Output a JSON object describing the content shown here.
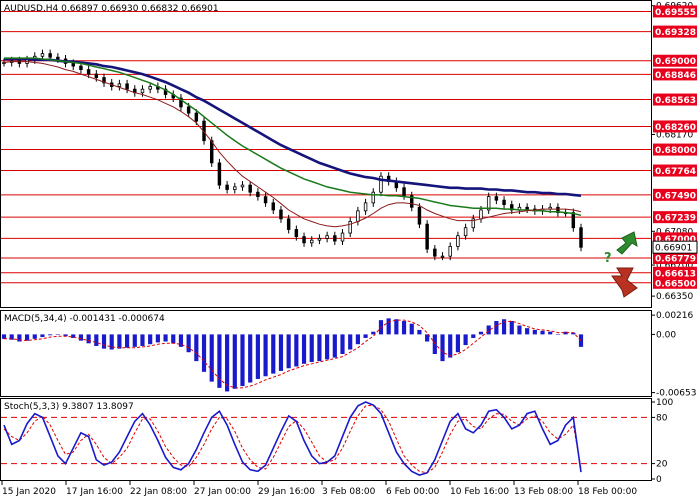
{
  "chart_data": [
    {
      "type": "line",
      "panel": "price",
      "title": "AUDUSD,H4  0.66897  0.66930  0.66832  0.66901",
      "ylim": [
        0.6625,
        0.6965
      ],
      "y_ticks": [
        "0.69620",
        "0.69555",
        "0.69328",
        "0.69000",
        "0.68846",
        "0.68563",
        "0.68260",
        "0.68170",
        "0.68000",
        "0.67764",
        "0.67490",
        "0.67239",
        "0.67080",
        "0.67000",
        "0.66901",
        "0.66779",
        "0.66700",
        "0.66613",
        "0.66500",
        "0.66350"
      ],
      "resistance_support_levels": [
        "0.69555",
        "0.69328",
        "0.69000",
        "0.68846",
        "0.68563",
        "0.68260",
        "0.68000",
        "0.67764",
        "0.67490",
        "0.67239",
        "0.67000",
        "0.66779",
        "0.66613",
        "0.66500"
      ],
      "current_price": "0.66901",
      "price": [
        0.6898,
        0.69,
        0.6897,
        0.6901,
        0.6905,
        0.6908,
        0.6904,
        0.6902,
        0.6897,
        0.6894,
        0.689,
        0.6885,
        0.6881,
        0.6875,
        0.6871,
        0.6874,
        0.6868,
        0.6864,
        0.6868,
        0.6871,
        0.6868,
        0.6862,
        0.6858,
        0.6848,
        0.6841,
        0.6832,
        0.681,
        0.6785,
        0.676,
        0.6755,
        0.6758,
        0.676,
        0.6752,
        0.6747,
        0.674,
        0.6732,
        0.6722,
        0.671,
        0.6702,
        0.6695,
        0.6698,
        0.67,
        0.6703,
        0.6697,
        0.6706,
        0.6719,
        0.6731,
        0.674,
        0.6752,
        0.677,
        0.6764,
        0.6757,
        0.6748,
        0.6735,
        0.6716,
        0.6688,
        0.668,
        0.668,
        0.6691,
        0.6703,
        0.6712,
        0.6722,
        0.6732,
        0.6747,
        0.6743,
        0.6738,
        0.6732,
        0.6735,
        0.6733,
        0.6731,
        0.6733,
        0.6735,
        0.6729,
        0.6729,
        0.6712,
        0.669
      ],
      "sma_fast_red": [
        0.6898,
        0.6899,
        0.6899,
        0.6899,
        0.6898,
        0.6897,
        0.6895,
        0.6893,
        0.689,
        0.6888,
        0.6885,
        0.6882,
        0.6879,
        0.6876,
        0.6873,
        0.687,
        0.6867,
        0.6864,
        0.6862,
        0.6859,
        0.6856,
        0.6852,
        0.6848,
        0.6843,
        0.6837,
        0.683,
        0.682,
        0.6809,
        0.6797,
        0.6787,
        0.6778,
        0.677,
        0.6764,
        0.6758,
        0.6752,
        0.6746,
        0.6739,
        0.6732,
        0.6727,
        0.6722,
        0.6719,
        0.6716,
        0.6714,
        0.6713,
        0.6714,
        0.6716,
        0.6719,
        0.6723,
        0.6728,
        0.6734,
        0.6738,
        0.674,
        0.674,
        0.6739,
        0.6737,
        0.6732,
        0.6728,
        0.6725,
        0.6722,
        0.672,
        0.672,
        0.672,
        0.6722,
        0.6724,
        0.6726,
        0.6728,
        0.6729,
        0.673,
        0.6731,
        0.6732,
        0.6733,
        0.6733,
        0.6733,
        0.6733,
        0.6732,
        0.673
      ],
      "sma_mid_green": [
        0.6903,
        0.6903,
        0.6903,
        0.6903,
        0.6903,
        0.6902,
        0.6901,
        0.69,
        0.6899,
        0.6898,
        0.6897,
        0.6895,
        0.6893,
        0.6891,
        0.6889,
        0.6887,
        0.6884,
        0.6881,
        0.6878,
        0.6875,
        0.6871,
        0.6867,
        0.6862,
        0.6856,
        0.685,
        0.6844,
        0.6837,
        0.683,
        0.6823,
        0.6816,
        0.681,
        0.6804,
        0.6799,
        0.6794,
        0.6789,
        0.6784,
        0.6779,
        0.6775,
        0.6771,
        0.6767,
        0.6764,
        0.6761,
        0.6758,
        0.6756,
        0.6754,
        0.6752,
        0.6751,
        0.675,
        0.6749,
        0.6749,
        0.6748,
        0.6748,
        0.6747,
        0.6746,
        0.6745,
        0.6743,
        0.6741,
        0.6739,
        0.6737,
        0.6736,
        0.6735,
        0.6734,
        0.6734,
        0.6734,
        0.6734,
        0.6733,
        0.6733,
        0.6732,
        0.6732,
        0.6731,
        0.6731,
        0.673,
        0.673,
        0.6729,
        0.6728,
        0.6726
      ],
      "sma_slow_navy": [
        0.6902,
        0.6902,
        0.6902,
        0.6902,
        0.6901,
        0.6901,
        0.6901,
        0.69,
        0.6899,
        0.6899,
        0.6898,
        0.6897,
        0.6896,
        0.6894,
        0.6893,
        0.6891,
        0.6889,
        0.6887,
        0.6885,
        0.6882,
        0.6879,
        0.6876,
        0.6872,
        0.6868,
        0.6864,
        0.6859,
        0.6855,
        0.685,
        0.6845,
        0.684,
        0.6835,
        0.683,
        0.6825,
        0.682,
        0.6815,
        0.681,
        0.6805,
        0.6801,
        0.6797,
        0.6793,
        0.6789,
        0.6785,
        0.6782,
        0.6779,
        0.6776,
        0.6773,
        0.6771,
        0.6769,
        0.6768,
        0.6766,
        0.6765,
        0.6764,
        0.6763,
        0.6762,
        0.6761,
        0.676,
        0.6759,
        0.6758,
        0.6757,
        0.6757,
        0.6756,
        0.6756,
        0.6756,
        0.6755,
        0.6755,
        0.6754,
        0.6754,
        0.6753,
        0.6752,
        0.6752,
        0.6751,
        0.6751,
        0.675,
        0.675,
        0.6749,
        0.6748
      ]
    },
    {
      "type": "bar",
      "panel": "macd",
      "title": "MACD(5,34,4) -0.001431 -0.000674",
      "ylim": [
        -0.0068,
        0.0024
      ],
      "y_ticks": [
        "0.00216",
        "0.00",
        "-0.00653"
      ],
      "values": [
        -0.0005,
        -0.0006,
        -0.0008,
        -0.0007,
        -0.0005,
        -0.0003,
        -0.0001,
        0.0,
        -0.0002,
        -0.0004,
        -0.0007,
        -0.001,
        -0.0013,
        -0.0016,
        -0.0017,
        -0.0016,
        -0.0015,
        -0.0014,
        -0.0013,
        -0.0011,
        -0.0009,
        -0.0008,
        -0.001,
        -0.0014,
        -0.002,
        -0.003,
        -0.0042,
        -0.0053,
        -0.006,
        -0.0064,
        -0.0061,
        -0.0058,
        -0.0054,
        -0.005,
        -0.0047,
        -0.0044,
        -0.0041,
        -0.0038,
        -0.0036,
        -0.0033,
        -0.0031,
        -0.003,
        -0.0028,
        -0.0026,
        -0.0022,
        -0.0017,
        -0.0011,
        -0.0004,
        0.0003,
        0.0016,
        0.0018,
        0.0017,
        0.0015,
        0.0012,
        0.0005,
        -0.0008,
        -0.0022,
        -0.003,
        -0.0026,
        -0.002,
        -0.0012,
        -0.0004,
        0.0003,
        0.001,
        0.0015,
        0.0017,
        0.0015,
        0.001,
        0.0007,
        0.0005,
        0.0004,
        0.0003,
        0.0,
        0.0003,
        0.0002,
        -0.0014
      ],
      "signal": [
        -0.0005,
        -0.0005,
        -0.0006,
        -0.0007,
        -0.0006,
        -0.0005,
        -0.0003,
        -0.0002,
        -0.0002,
        -0.0003,
        -0.0005,
        -0.0007,
        -0.0009,
        -0.0012,
        -0.0014,
        -0.0015,
        -0.0015,
        -0.0015,
        -0.0014,
        -0.0013,
        -0.0011,
        -0.001,
        -0.001,
        -0.0011,
        -0.0015,
        -0.0021,
        -0.003,
        -0.004,
        -0.005,
        -0.0057,
        -0.006,
        -0.006,
        -0.0058,
        -0.0055,
        -0.0051,
        -0.0048,
        -0.0045,
        -0.0041,
        -0.0038,
        -0.0035,
        -0.0033,
        -0.0031,
        -0.0029,
        -0.0027,
        -0.0025,
        -0.002,
        -0.0015,
        -0.0008,
        -0.0002,
        0.0008,
        0.0014,
        0.0016,
        0.0016,
        0.0014,
        0.001,
        0.0002,
        -0.001,
        -0.002,
        -0.0024,
        -0.0022,
        -0.0017,
        -0.001,
        -0.0003,
        0.0004,
        0.001,
        0.0014,
        0.0015,
        0.0012,
        0.0009,
        0.0006,
        0.0005,
        0.0004,
        0.0002,
        0.0002,
        0.0002,
        -0.0007
      ]
    },
    {
      "type": "line",
      "panel": "stochastic",
      "title": "Stoch(5,3,3) 9.3807 13.8097",
      "ylim": [
        0,
        100
      ],
      "y_ticks": [
        "100",
        "80",
        "20",
        "0"
      ],
      "levels": [
        80,
        20
      ],
      "k": [
        70,
        45,
        50,
        72,
        85,
        80,
        55,
        30,
        20,
        40,
        60,
        55,
        25,
        18,
        22,
        35,
        55,
        75,
        85,
        70,
        50,
        28,
        15,
        12,
        20,
        38,
        60,
        80,
        88,
        70,
        45,
        22,
        12,
        10,
        18,
        40,
        62,
        82,
        75,
        50,
        30,
        20,
        22,
        30,
        55,
        80,
        95,
        100,
        96,
        85,
        60,
        35,
        20,
        10,
        5,
        8,
        25,
        50,
        75,
        85,
        65,
        60,
        70,
        88,
        90,
        80,
        65,
        70,
        85,
        88,
        65,
        45,
        50,
        70,
        80,
        9
      ],
      "d": [
        65,
        55,
        50,
        60,
        75,
        82,
        70,
        50,
        32,
        35,
        50,
        58,
        45,
        28,
        20,
        28,
        40,
        60,
        78,
        78,
        62,
        42,
        28,
        18,
        16,
        28,
        45,
        65,
        80,
        78,
        62,
        40,
        25,
        15,
        13,
        28,
        48,
        68,
        76,
        65,
        48,
        30,
        22,
        25,
        40,
        62,
        82,
        95,
        96,
        90,
        75,
        52,
        30,
        18,
        10,
        8,
        15,
        35,
        58,
        75,
        78,
        68,
        65,
        78,
        85,
        84,
        75,
        70,
        78,
        82,
        75,
        60,
        52,
        58,
        70,
        14
      ]
    }
  ],
  "x_axis_labels": [
    "15 Jan 2020",
    "17 Jan 16:00",
    "22 Jan 08:00",
    "27 Jan 00:00",
    "29 Jan 16:00",
    "3 Feb 08:00",
    "6 Feb 00:00",
    "10 Feb 16:00",
    "13 Feb 08:00",
    "18 Feb 00:00"
  ],
  "annotations": {
    "question_mark": "?",
    "arrow_up_color": "#2e8b2e",
    "arrow_down_color": "#b83222"
  },
  "colors": {
    "level_line": "#dd0000",
    "level_box": "#e8001c",
    "current_box": "#ffffff",
    "candle": "#000000",
    "sma_fast": "#8b1a1a",
    "sma_mid": "#1a7a1a",
    "sma_slow": "#14147a",
    "macd_bar": "#1a1acd",
    "macd_signal": "#e00000",
    "stoch_k": "#1a1acd",
    "stoch_d": "#e00000",
    "stoch_level": "#dd0000",
    "panel_border": "#000000"
  }
}
